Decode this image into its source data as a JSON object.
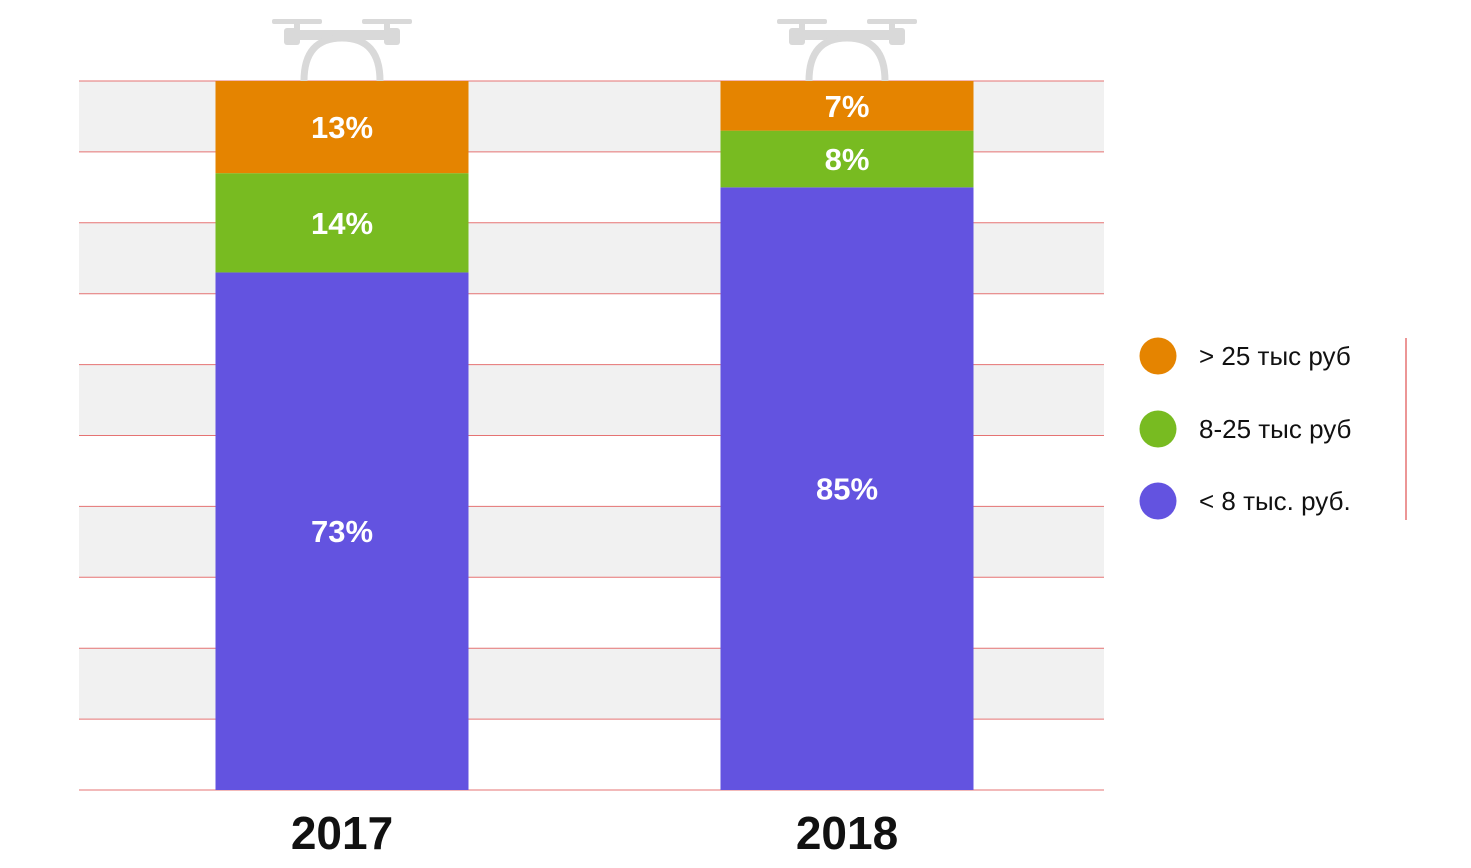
{
  "chart_data": {
    "type": "bar",
    "stacked": true,
    "orientation": "vertical",
    "categories": [
      "2017",
      "2018"
    ],
    "series": [
      {
        "name": "< 8 тыс. руб.",
        "values": [
          73,
          85
        ],
        "color": "#6353e0"
      },
      {
        "name": "8-25 тыс руб",
        "values": [
          14,
          8
        ],
        "color": "#78bb21"
      },
      {
        "name": "> 25 тыс руб",
        "values": [
          13,
          7
        ],
        "color": "#e58400"
      }
    ],
    "value_labels": [
      [
        "73%",
        "85%"
      ],
      [
        "14%",
        "8%"
      ],
      [
        "13%",
        "7%"
      ]
    ],
    "ylim": [
      0,
      100
    ],
    "unit": "%",
    "title": "",
    "xlabel": "",
    "ylabel": "",
    "grid": true,
    "gridline_color": "#e57373",
    "band_color": "#f1f1f1",
    "legend_position": "right",
    "legend_order": [
      "> 25 тыс руб",
      "8-25 тыс руб",
      "< 8 тыс. руб."
    ],
    "decoration_icon": "drone-icon"
  }
}
